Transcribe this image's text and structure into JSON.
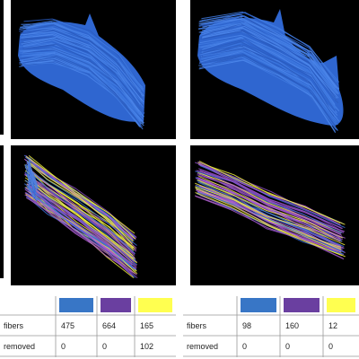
{
  "tables": [
    {
      "rows": [
        {
          "label": "fibers",
          "values": [
            475,
            664,
            165
          ]
        },
        {
          "label": "removed",
          "values": [
            0,
            0,
            102
          ]
        }
      ]
    },
    {
      "rows": [
        {
          "label": "fibers",
          "values": [
            98,
            160,
            12
          ]
        },
        {
          "label": "removed",
          "values": [
            0,
            0,
            0
          ]
        }
      ]
    }
  ]
}
